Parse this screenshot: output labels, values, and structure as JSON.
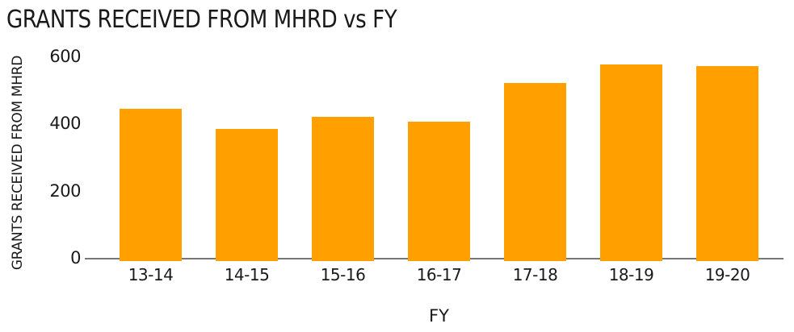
{
  "chart_data": {
    "type": "bar",
    "title": "GRANTS RECEIVED FROM MHRD vs FY",
    "xlabel": "FY",
    "ylabel": "GRANTS RECEIVED FROM MHRD",
    "categories": [
      "13-14",
      "14-15",
      "15-16",
      "16-17",
      "17-18",
      "18-19",
      "19-20"
    ],
    "values": [
      450,
      390,
      425,
      410,
      525,
      580,
      575
    ],
    "ylim": [
      0,
      600
    ],
    "yticks": [
      0,
      200,
      400,
      600
    ],
    "grid": false,
    "legend": false,
    "bar_color": "#FFA000",
    "axis_line_color": "#777777",
    "text_color": "#1A1A1A",
    "background_color": "#FFFFFF"
  }
}
